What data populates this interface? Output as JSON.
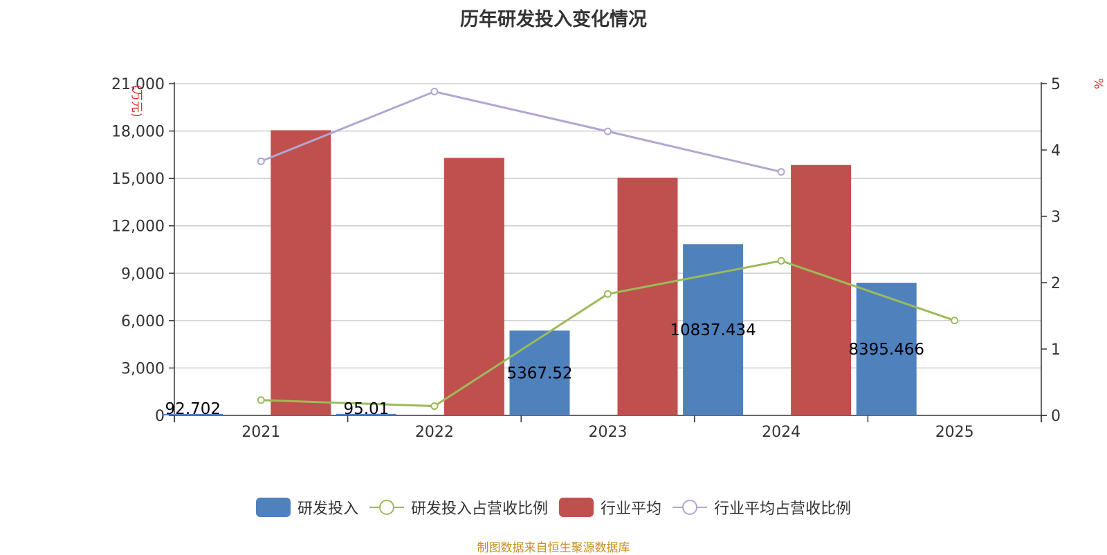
{
  "title": "历年研发投入变化情况",
  "source_note": "制图数据来自恒生聚源数据库",
  "chart_data": {
    "type": "bar",
    "categories": [
      "2021",
      "2022",
      "2023",
      "2024",
      "2025"
    ],
    "y_left": {
      "unit": "(万元)",
      "ylim": [
        0,
        21000
      ],
      "ticks": [
        "0",
        "3,000",
        "6,000",
        "9,000",
        "12,000",
        "15,000",
        "18,000",
        "21,000"
      ]
    },
    "y_right": {
      "unit": "%",
      "ylim": [
        0,
        5
      ],
      "ticks": [
        "0",
        "1",
        "2",
        "3",
        "4",
        "5"
      ]
    },
    "grid": true,
    "legend_position": "bottom",
    "series": [
      {
        "name": "研发投入",
        "kind": "bar",
        "axis": "left",
        "color": "#4f81bd",
        "values": [
          92.702,
          95.01,
          5367.52,
          10837.434,
          8395.466
        ],
        "labels": [
          "92.702",
          "95.01",
          "5367.52",
          "10837.434",
          "8395.466"
        ]
      },
      {
        "name": "研发投入占营收比例",
        "kind": "line",
        "axis": "right",
        "color": "#9bbb59",
        "values": [
          0.23,
          0.14,
          1.83,
          2.33,
          1.43
        ]
      },
      {
        "name": "行业平均",
        "kind": "bar",
        "axis": "left",
        "color": "#c0504d",
        "values": [
          18050,
          16300,
          15050,
          15850,
          null
        ]
      },
      {
        "name": "行业平均占营收比例",
        "kind": "line",
        "axis": "right",
        "color": "#b3a6d1",
        "values": [
          3.83,
          4.88,
          4.28,
          3.67,
          null
        ]
      }
    ]
  }
}
